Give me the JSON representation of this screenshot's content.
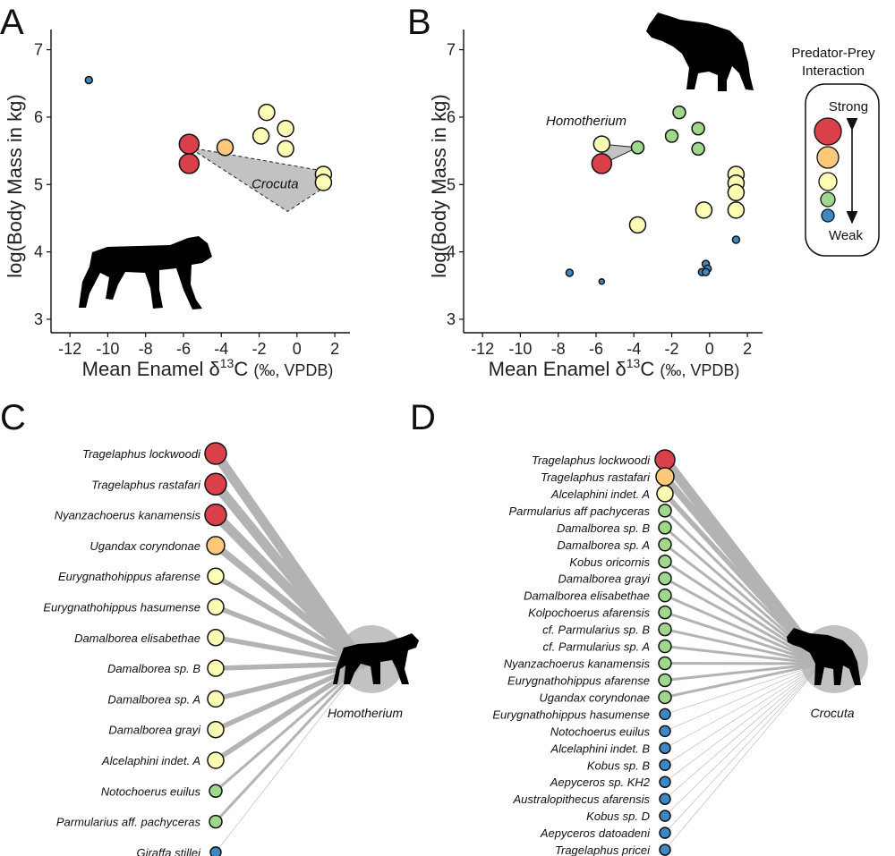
{
  "panels": {
    "A": "A",
    "B": "B",
    "C": "C",
    "D": "D"
  },
  "colors": {
    "strong": "#d9404a",
    "mid_strong": "#fdc87a",
    "medium": "#fcfcb4",
    "mid_weak": "#9fd88a",
    "weak": "#3b88c4",
    "edge": "#b3b3b3",
    "hull": "#c2c2c2",
    "silhouette": "#000000"
  },
  "legend": {
    "title_line1": "Predator-Prey",
    "title_line2": "Interaction",
    "strong": "Strong",
    "weak": "Weak"
  },
  "scatter_axes": {
    "xlabel_main": "Mean Enamel δ",
    "xlabel_sup": "13",
    "xlabel_end": "C",
    "xlabel_units": "(‰, VPDB)",
    "ylabel": "log(Body Mass in kg)",
    "x_ticks": [
      "-12",
      "-10",
      "-8",
      "-6",
      "-4",
      "-2",
      "0",
      "2"
    ],
    "y_ticks": [
      "3",
      "4",
      "5",
      "6",
      "7"
    ]
  },
  "network_c_label": "Homotherium",
  "network_d_label": "Crocuta",
  "chart_data": [
    {
      "panel": "A",
      "type": "scatter",
      "xlabel": "Mean Enamel δ13C (‰, VPDB)",
      "ylabel": "log(Body Mass in kg)",
      "xlim": [
        -13,
        2.8
      ],
      "ylim": [
        2.8,
        7.3
      ],
      "hull_label": "Crocuta",
      "hull": [
        [
          -5.7,
          5.55
        ],
        [
          1.4,
          5.2
        ],
        [
          1.4,
          4.95
        ],
        [
          -0.5,
          4.6
        ]
      ],
      "points": [
        {
          "x": -11.0,
          "y": 6.55,
          "level": "weak",
          "size": "s"
        },
        {
          "x": -1.6,
          "y": 6.07,
          "level": "medium",
          "size": "m"
        },
        {
          "x": -0.6,
          "y": 5.83,
          "level": "medium",
          "size": "m"
        },
        {
          "x": -1.9,
          "y": 5.72,
          "level": "medium",
          "size": "m"
        },
        {
          "x": -0.6,
          "y": 5.53,
          "level": "medium",
          "size": "m"
        },
        {
          "x": -5.7,
          "y": 5.6,
          "level": "strong",
          "size": "l"
        },
        {
          "x": -3.8,
          "y": 5.55,
          "level": "mid_strong",
          "size": "m"
        },
        {
          "x": -5.7,
          "y": 5.31,
          "level": "strong",
          "size": "l"
        },
        {
          "x": 1.4,
          "y": 5.15,
          "level": "medium",
          "size": "m"
        },
        {
          "x": 1.4,
          "y": 5.03,
          "level": "medium",
          "size": "m"
        }
      ]
    },
    {
      "panel": "B",
      "type": "scatter",
      "xlabel": "Mean Enamel δ13C (‰, VPDB)",
      "ylabel": "log(Body Mass in kg)",
      "xlim": [
        -13,
        2.8
      ],
      "ylim": [
        2.8,
        7.3
      ],
      "hull_label": "Homotherium",
      "hull": [
        [
          -5.7,
          5.6
        ],
        [
          -3.8,
          5.55
        ],
        [
          -5.7,
          5.3
        ]
      ],
      "points": [
        {
          "x": -1.6,
          "y": 6.07,
          "level": "mid_weak",
          "size": "s2"
        },
        {
          "x": -0.6,
          "y": 5.83,
          "level": "mid_weak",
          "size": "s2"
        },
        {
          "x": -2.0,
          "y": 5.72,
          "level": "mid_weak",
          "size": "s2"
        },
        {
          "x": -0.6,
          "y": 5.53,
          "level": "mid_weak",
          "size": "s2"
        },
        {
          "x": -5.7,
          "y": 5.6,
          "level": "medium",
          "size": "m"
        },
        {
          "x": -3.8,
          "y": 5.55,
          "level": "mid_weak",
          "size": "s2"
        },
        {
          "x": -5.7,
          "y": 5.31,
          "level": "strong",
          "size": "l"
        },
        {
          "x": 1.4,
          "y": 5.15,
          "level": "medium",
          "size": "m"
        },
        {
          "x": 1.4,
          "y": 5.02,
          "level": "medium",
          "size": "m"
        },
        {
          "x": 1.4,
          "y": 4.88,
          "level": "medium",
          "size": "m"
        },
        {
          "x": 1.4,
          "y": 4.62,
          "level": "medium",
          "size": "m"
        },
        {
          "x": -0.3,
          "y": 4.62,
          "level": "medium",
          "size": "m"
        },
        {
          "x": -3.8,
          "y": 4.4,
          "level": "medium",
          "size": "m"
        },
        {
          "x": 1.4,
          "y": 4.18,
          "level": "weak",
          "size": "s"
        },
        {
          "x": -0.2,
          "y": 3.82,
          "level": "weak",
          "size": "s"
        },
        {
          "x": -0.1,
          "y": 3.75,
          "level": "weak",
          "size": "s"
        },
        {
          "x": -0.4,
          "y": 3.7,
          "level": "weak",
          "size": "s"
        },
        {
          "x": -0.2,
          "y": 3.7,
          "level": "weak",
          "size": "s"
        },
        {
          "x": -7.4,
          "y": 3.69,
          "level": "weak",
          "size": "s"
        },
        {
          "x": -5.7,
          "y": 3.56,
          "level": "weak",
          "size": "xs"
        }
      ]
    },
    {
      "panel": "C",
      "type": "network",
      "predator": "Homotherium",
      "prey": [
        {
          "name": "Tragelaphus lockwoodi",
          "level": "strong",
          "weight": 5
        },
        {
          "name": "Tragelaphus rastafari",
          "level": "strong",
          "weight": 5
        },
        {
          "name": "Nyanzachoerus kanamensis",
          "level": "strong",
          "weight": 5
        },
        {
          "name": "Ugandax coryndonae",
          "level": "mid_strong",
          "weight": 4
        },
        {
          "name": "Eurygnathohippus afarense",
          "level": "medium",
          "weight": 3
        },
        {
          "name": "Eurygnathohippus hasumense",
          "level": "medium",
          "weight": 3
        },
        {
          "name": "Damalborea elisabethae",
          "level": "medium",
          "weight": 3
        },
        {
          "name": "Damalborea sp. B",
          "level": "medium",
          "weight": 3
        },
        {
          "name": "Damalborea sp. A",
          "level": "medium",
          "weight": 3
        },
        {
          "name": "Damalborea grayi",
          "level": "medium",
          "weight": 3
        },
        {
          "name": "Alcelaphini indet. A",
          "level": "medium",
          "weight": 3
        },
        {
          "name": "Notochoerus euilus",
          "level": "mid_weak",
          "weight": 2
        },
        {
          "name": "Parmularius aff. pachyceras",
          "level": "mid_weak",
          "weight": 2
        },
        {
          "name": "Giraffa stillei",
          "level": "weak",
          "weight": 1
        }
      ]
    },
    {
      "panel": "D",
      "type": "network",
      "predator": "Crocuta",
      "prey": [
        {
          "name": "Tragelaphus lockwoodi",
          "level": "strong",
          "weight": 5
        },
        {
          "name": "Tragelaphus rastafari",
          "level": "mid_strong",
          "weight": 4
        },
        {
          "name": "Alcelaphini indet. A",
          "level": "medium",
          "weight": 3
        },
        {
          "name": "Parmularius aff pachyceras",
          "level": "mid_weak",
          "weight": 2
        },
        {
          "name": "Damalborea sp. B",
          "level": "mid_weak",
          "weight": 2
        },
        {
          "name": "Damalborea sp. A",
          "level": "mid_weak",
          "weight": 2
        },
        {
          "name": "Kobus oricornis",
          "level": "mid_weak",
          "weight": 2
        },
        {
          "name": "Damalborea grayi",
          "level": "mid_weak",
          "weight": 2
        },
        {
          "name": "Damalborea elisabethae",
          "level": "mid_weak",
          "weight": 2
        },
        {
          "name": "Kolpochoerus afarensis",
          "level": "mid_weak",
          "weight": 2
        },
        {
          "name": "cf. Parmularius sp. B",
          "level": "mid_weak",
          "weight": 2
        },
        {
          "name": "cf. Parmularius sp. A",
          "level": "mid_weak",
          "weight": 2
        },
        {
          "name": "Nyanzachoerus kanamensis",
          "level": "mid_weak",
          "weight": 2
        },
        {
          "name": "Eurygnathohippus afarense",
          "level": "mid_weak",
          "weight": 2
        },
        {
          "name": "Ugandax coryndonae",
          "level": "mid_weak",
          "weight": 2
        },
        {
          "name": "Eurygnathohippus hasumense",
          "level": "weak",
          "weight": 1
        },
        {
          "name": "Notochoerus euilus",
          "level": "weak",
          "weight": 1
        },
        {
          "name": "Alcelaphini indet. B",
          "level": "weak",
          "weight": 1
        },
        {
          "name": "Kobus sp. B",
          "level": "weak",
          "weight": 1
        },
        {
          "name": "Aepyceros sp. KH2",
          "level": "weak",
          "weight": 1
        },
        {
          "name": "Australopithecus afarensis",
          "level": "weak",
          "weight": 1
        },
        {
          "name": "Kobus sp. D",
          "level": "weak",
          "weight": 1
        },
        {
          "name": "Aepyceros datoadeni",
          "level": "weak",
          "weight": 1
        },
        {
          "name": "Tragelaphus pricei",
          "level": "weak",
          "weight": 1
        }
      ]
    }
  ]
}
